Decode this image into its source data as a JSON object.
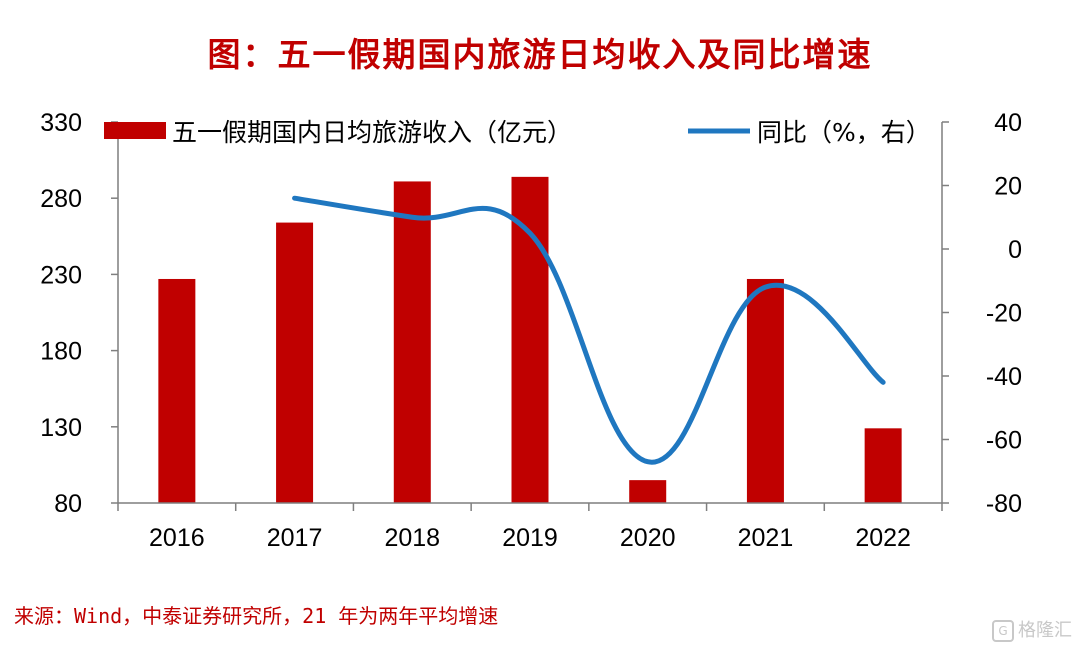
{
  "title": "图：五一假期国内旅游日均收入及同比增速",
  "source": "来源：Wind，中泰证券研究所，21 年为两年平均增速",
  "watermark": "格隆汇",
  "watermark_icon": "G",
  "colors": {
    "bar": "#c00000",
    "line": "#1f77c0",
    "title": "#c00000",
    "axis": "#7f7f7f"
  },
  "chart_data": {
    "type": "bar",
    "categories": [
      "2016",
      "2017",
      "2018",
      "2019",
      "2020",
      "2021",
      "2022"
    ],
    "series": [
      {
        "name": "五一假期国内日均旅游收入（亿元）",
        "type": "bar",
        "axis": "left",
        "values": [
          227,
          264,
          291,
          294,
          95,
          227,
          129
        ]
      },
      {
        "name": "同比（%，右）",
        "type": "line",
        "axis": "right",
        "values": [
          null,
          16,
          10,
          5,
          -67,
          -12,
          -42
        ]
      }
    ],
    "y_left": {
      "range": [
        80,
        330
      ],
      "ticks": [
        80,
        130,
        180,
        230,
        280,
        330
      ]
    },
    "y_right": {
      "range": [
        -80,
        40
      ],
      "ticks": [
        -80,
        -60,
        -40,
        -20,
        0,
        20,
        40
      ]
    },
    "legend_position": "top",
    "grid": false
  }
}
